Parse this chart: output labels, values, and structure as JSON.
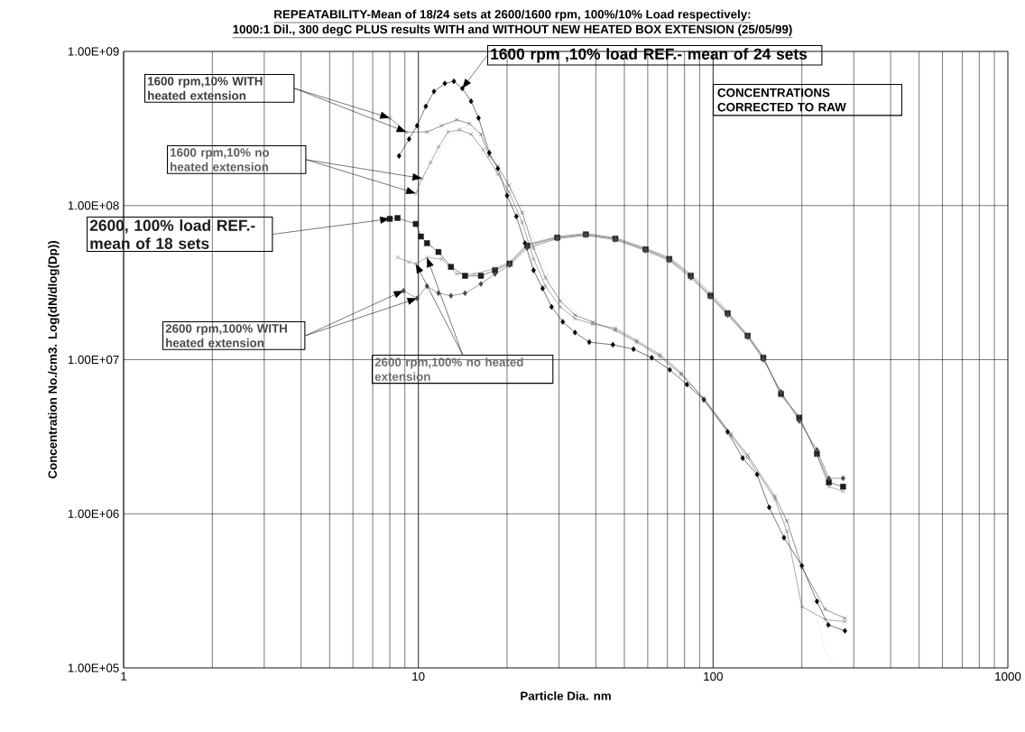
{
  "chart_data": {
    "type": "line",
    "title": "REPEATABILITY-Mean of 18/24 sets at 2600/1600 rpm, 100%/10% Load respectively:",
    "subtitle": "1000:1 Dil., 300 degC PLUS results WITH and WITHOUT NEW HEATED BOX EXTENSION (25/05/99)",
    "xlabel": "Particle Dia. nm",
    "ylabel": "Concentration No./cm3. Log(dN/dlog(Dp))",
    "log": "xy",
    "grid": true,
    "xlim": [
      1,
      1000
    ],
    "xticks": [
      1,
      10,
      100,
      1000
    ],
    "ylim": [
      100000.0,
      1000000000.0
    ],
    "yticks": [
      {
        "value": 100000.0,
        "label": "1.00E+05"
      },
      {
        "value": 1000000.0,
        "label": "1.00E+06"
      },
      {
        "value": 10000000.0,
        "label": "1.00E+07"
      },
      {
        "value": 100000000.0,
        "label": "1.00E+08"
      },
      {
        "value": 1000000000.0,
        "label": "1.00E+09"
      }
    ],
    "annotations": [
      "CONCENTRATIONS CORRECTED TO RAW"
    ],
    "series": [
      {
        "name": "1600 rpm ,10% load REF.-  mean of 24 sets",
        "color": "#000000",
        "marker": "diamond",
        "x": [
          8.6,
          9.3,
          9.9,
          10.6,
          11.3,
          12.3,
          13.2,
          14.1,
          15.1,
          16.0,
          17.4,
          18.6,
          20,
          21.5,
          23,
          24.6,
          26.4,
          28.3,
          30.9,
          34,
          38,
          45.7,
          53.7,
          61.9,
          71.3,
          81.5,
          93,
          112,
          126,
          141,
          155,
          174,
          200,
          225,
          246,
          280
        ],
        "values": [
          210000000.0,
          270000000.0,
          330000000.0,
          440000000.0,
          550000000.0,
          620000000.0,
          640000000.0,
          575000000.0,
          475000000.0,
          370000000.0,
          220000000.0,
          174000000.0,
          116000000.0,
          85000000.0,
          57000000.0,
          38000000.0,
          29000000.0,
          22000000.0,
          17600000.0,
          15000000.0,
          13000000.0,
          12500000.0,
          11700000.0,
          10300000.0,
          8600000.0,
          6900000.0,
          5500000.0,
          3400000.0,
          2300000.0,
          1800000.0,
          1100000.0,
          700000.0,
          460000.0,
          270000.0,
          190000.0,
          174000.0
        ]
      },
      {
        "name": "1600 rpm,10% WITH heated extension",
        "color": "#3a3a3a",
        "marker": "cross",
        "x": [
          8.0,
          9.1,
          10.7,
          12.0,
          13.5,
          14.9,
          16.3,
          17.4,
          18.6,
          20.3,
          22.5,
          24.6,
          27,
          30.3,
          34,
          39,
          46.6,
          55,
          66,
          78,
          93,
          115,
          131,
          162,
          178,
          200,
          240,
          280
        ],
        "values": [
          370000000.0,
          300000000.0,
          300000000.0,
          330000000.0,
          360000000.0,
          340000000.0,
          290000000.0,
          210000000.0,
          180000000.0,
          135000000.0,
          90000000.0,
          53000000.0,
          34000000.0,
          24000000.0,
          19500000.0,
          17500000.0,
          15500000.0,
          13000000.0,
          10500000.0,
          8000000.0,
          5600000.0,
          3300000.0,
          2400000.0,
          1300000.0,
          900000.0,
          450000.0,
          240000.0,
          210000.0
        ]
      },
      {
        "name": "1600 rpm,10% no heated extension",
        "color": "#5c5c5c",
        "marker": "cross",
        "x": [
          9.8,
          10.3,
          11.0,
          11.7,
          12.6,
          13.8,
          15.1,
          16.6,
          18.6,
          20.3,
          22.5,
          24.6,
          27,
          30.3,
          34,
          39,
          46.6,
          55,
          66,
          78,
          93,
          115,
          131,
          162,
          178,
          200,
          240,
          280
        ],
        "values": [
          120000000.0,
          150000000.0,
          190000000.0,
          240000000.0,
          300000000.0,
          310000000.0,
          290000000.0,
          230000000.0,
          160000000.0,
          123000000.0,
          78000000.0,
          45000000.0,
          30000000.0,
          22000000.0,
          18500000.0,
          17000000.0,
          16000000.0,
          13300000.0,
          10800000.0,
          8200000.0,
          5500000.0,
          3200000.0,
          2300000.0,
          1250000.0,
          770000.0,
          250000.0,
          206000.0,
          200000.0
        ]
      },
      {
        "name": "2600, 100% load REF.-mean of 18 sets",
        "color": "#1c1c1c",
        "marker": "square",
        "x": [
          8.0,
          8.5,
          9.8,
          10.2,
          10.7,
          11.7,
          12.9,
          14.4,
          16.3,
          18.2,
          20.4,
          23.4,
          29.6,
          37,
          46.6,
          59,
          71,
          84,
          98,
          112,
          131,
          148,
          170,
          196,
          225,
          247,
          276
        ],
        "values": [
          82000000.0,
          83000000.0,
          76000000.0,
          63000000.0,
          57000000.0,
          50000000.0,
          40000000.0,
          35000000.0,
          35000000.0,
          38000000.0,
          42000000.0,
          55000000.0,
          62000000.0,
          65000000.0,
          61000000.0,
          52000000.0,
          45000000.0,
          35000000.0,
          26000000.0,
          20000000.0,
          14300000.0,
          10300000.0,
          6000000.0,
          4200000.0,
          2450000.0,
          1600000.0,
          1500000.0
        ]
      },
      {
        "name": "2600 rpm,100% WITH heated extension",
        "color": "#484848",
        "marker": "diamond",
        "x": [
          8.9,
          9.9,
          10.7,
          11.7,
          12.9,
          14.4,
          16.3,
          18.2,
          20.4,
          23.4,
          29.6,
          37,
          46.6,
          59,
          71,
          84,
          98,
          112,
          131,
          148,
          170,
          196,
          225,
          247,
          276
        ],
        "values": [
          28000000.0,
          25000000.0,
          30000000.0,
          27000000.0,
          26000000.0,
          27000000.0,
          31000000.0,
          36000000.0,
          41000000.0,
          53000000.0,
          61000000.0,
          64000000.0,
          60000000.0,
          51000000.0,
          44000000.0,
          34000000.0,
          25500000.0,
          19500000.0,
          14000000.0,
          10000000.0,
          6200000.0,
          4000000.0,
          2600000.0,
          1700000.0,
          1700000.0
        ]
      },
      {
        "name": "2600 rpm,100% no heated extension",
        "color": "#6e6e6e",
        "marker": "cross",
        "x": [
          8.5,
          9.3,
          9.8,
          10.7,
          12.0,
          13.5,
          15.5,
          18.2,
          20.4,
          23.4,
          29.6,
          37,
          46.6,
          59,
          71,
          84,
          98,
          112,
          131,
          148,
          170,
          196,
          225,
          247,
          276
        ],
        "values": [
          46000000.0,
          43000000.0,
          42000000.0,
          46000000.0,
          45000000.0,
          36000000.0,
          36000000.0,
          39000000.0,
          43000000.0,
          56000000.0,
          63000000.0,
          66000000.0,
          62000000.0,
          53000000.0,
          46000000.0,
          36000000.0,
          27000000.0,
          20500000.0,
          14500000.0,
          10500000.0,
          5800000.0,
          4300000.0,
          2400000.0,
          1500000.0,
          1400000.0
        ]
      },
      {
        "color": "#a8a8a8",
        "marker": "none",
        "line_style": "dotted",
        "x": [
          11.5,
          12.5,
          14,
          15.5,
          17,
          19,
          21,
          23,
          25.5,
          28,
          32,
          37,
          45,
          55,
          66,
          80,
          95,
          115,
          140,
          170,
          200,
          240,
          255
        ],
        "values": [
          200000000.0,
          270000000.0,
          320000000.0,
          310000000.0,
          260000000.0,
          180000000.0,
          130000000.0,
          85000000.0,
          50000000.0,
          33000000.0,
          23000000.0,
          18500000.0,
          16000000.0,
          13500000.0,
          11000000.0,
          8000000.0,
          5500000.0,
          3300000.0,
          2000000.0,
          1000000.0,
          500000.0,
          130000.0,
          105000.0
        ]
      }
    ]
  }
}
